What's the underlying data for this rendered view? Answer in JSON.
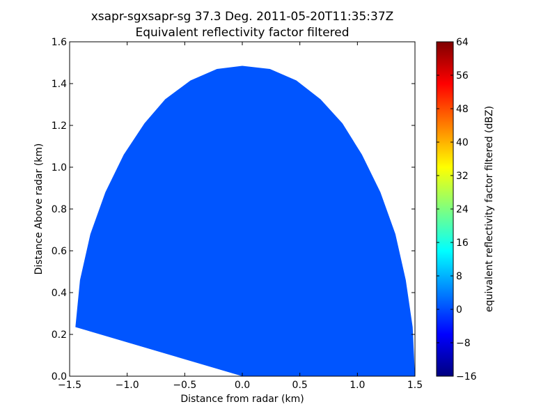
{
  "chart_data": {
    "type": "area",
    "title": "xsapr-sgxsapr-sg 37.3 Deg. 2011-05-20T11:35:37Z",
    "subtitle": "Equivalent reflectivity factor filtered",
    "xlabel": "Distance from radar (km)",
    "ylabel": "Distance Above radar  (km)",
    "xlim": [
      -1.5,
      1.5
    ],
    "ylim": [
      0.0,
      1.6
    ],
    "xticks": [
      "−1.5",
      "−1.0",
      "−0.5",
      "0.0",
      "0.5",
      "1.0",
      "1.5"
    ],
    "xtick_values": [
      -1.5,
      -1.0,
      -0.5,
      0.0,
      0.5,
      1.0,
      1.5
    ],
    "yticks": [
      "0.0",
      "0.2",
      "0.4",
      "0.6",
      "0.8",
      "1.0",
      "1.2",
      "1.4",
      "1.6"
    ],
    "ytick_values": [
      0.0,
      0.2,
      0.4,
      0.6,
      0.8,
      1.0,
      1.2,
      1.4,
      1.6
    ],
    "fill_color": "#0055ff",
    "fill_value_dbz": 2,
    "boundary": [
      [
        0.0,
        0.0
      ],
      [
        -1.45,
        0.235
      ],
      [
        -1.41,
        0.46
      ],
      [
        -1.32,
        0.68
      ],
      [
        -1.19,
        0.88
      ],
      [
        -1.03,
        1.06
      ],
      [
        -0.85,
        1.21
      ],
      [
        -0.67,
        1.325
      ],
      [
        -0.45,
        1.415
      ],
      [
        -0.22,
        1.47
      ],
      [
        0.0,
        1.485
      ],
      [
        0.24,
        1.47
      ],
      [
        0.47,
        1.415
      ],
      [
        0.68,
        1.325
      ],
      [
        0.87,
        1.21
      ],
      [
        1.04,
        1.06
      ],
      [
        1.2,
        0.88
      ],
      [
        1.33,
        0.68
      ],
      [
        1.42,
        0.46
      ],
      [
        1.48,
        0.235
      ],
      [
        1.5,
        0.0
      ]
    ],
    "colorbar": {
      "label": "equivalent reflectivity factor filtered (dBZ)",
      "min": -16,
      "max": 64,
      "ticks": [
        "−16",
        "−8",
        "0",
        "8",
        "16",
        "24",
        "32",
        "40",
        "48",
        "56",
        "64"
      ],
      "tick_values": [
        -16,
        -8,
        0,
        8,
        16,
        24,
        32,
        40,
        48,
        56,
        64
      ],
      "colormap": "jet",
      "colors": [
        "#00007f",
        "#0000ff",
        "#007fff",
        "#00ffff",
        "#7fff7f",
        "#ffff00",
        "#ff7f00",
        "#ff0000",
        "#7f0000"
      ]
    }
  }
}
